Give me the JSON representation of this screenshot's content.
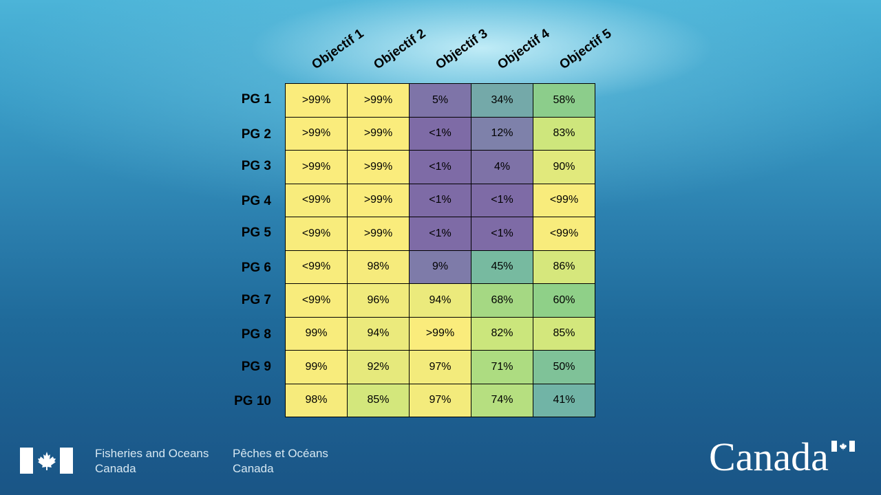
{
  "chart_data": {
    "type": "heatmap",
    "columns": [
      "Objectif 1",
      "Objectif 2",
      "Objectif 3",
      "Objectif 4",
      "Objectif 5"
    ],
    "rows": [
      "PG 1",
      "PG 2",
      "PG 3",
      "PG 4",
      "PG 5",
      "PG 6",
      "PG 7",
      "PG 8",
      "PG 9",
      "PG 10"
    ],
    "cells": [
      [
        ">99%",
        ">99%",
        "5%",
        "34%",
        "58%"
      ],
      [
        ">99%",
        ">99%",
        "<1%",
        "12%",
        "83%"
      ],
      [
        ">99%",
        ">99%",
        "<1%",
        "4%",
        "90%"
      ],
      [
        "<99%",
        ">99%",
        "<1%",
        "<1%",
        "<99%"
      ],
      [
        "<99%",
        ">99%",
        "<1%",
        "<1%",
        "<99%"
      ],
      [
        "<99%",
        "98%",
        "9%",
        "45%",
        "86%"
      ],
      [
        "<99%",
        "96%",
        "94%",
        "68%",
        "60%"
      ],
      [
        "99%",
        "94%",
        ">99%",
        "82%",
        "85%"
      ],
      [
        "99%",
        "92%",
        "97%",
        "71%",
        "50%"
      ],
      [
        "98%",
        "85%",
        "97%",
        "74%",
        "41%"
      ]
    ],
    "values": [
      [
        99.5,
        99.5,
        5,
        34,
        58
      ],
      [
        99.5,
        99.5,
        0.5,
        12,
        83
      ],
      [
        99.5,
        99.5,
        0.5,
        4,
        90
      ],
      [
        99,
        99.5,
        0.5,
        0.5,
        99
      ],
      [
        99,
        99.5,
        0.5,
        0.5,
        99
      ],
      [
        99,
        98,
        9,
        45,
        86
      ],
      [
        99,
        96,
        94,
        68,
        60
      ],
      [
        99,
        94,
        99.5,
        82,
        85
      ],
      [
        99,
        92,
        97,
        71,
        50
      ],
      [
        98,
        85,
        97,
        74,
        41
      ]
    ],
    "colorscale": [
      "#7e6aa6",
      "#7e90ac",
      "#6fb3a8",
      "#8fd088",
      "#c6e57c",
      "#fbec7c"
    ],
    "value_range": [
      0,
      100
    ]
  },
  "footer": {
    "department_en": [
      "Fisheries and Oceans",
      "Canada"
    ],
    "department_fr": [
      "Pêches et Océans",
      "Canada"
    ],
    "wordmark": "Canada",
    "flag_color": "#ffffff",
    "flag_icon": "maple-leaf-icon"
  }
}
